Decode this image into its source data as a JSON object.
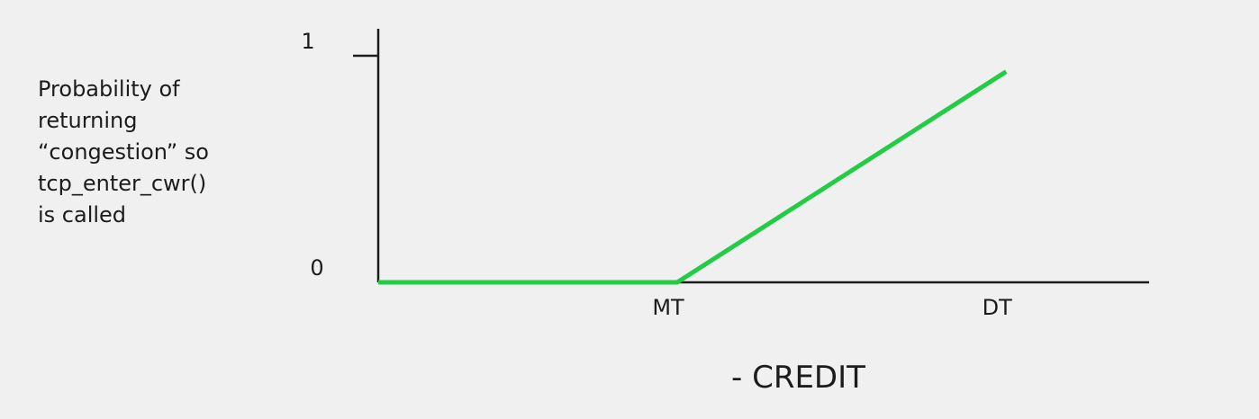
{
  "chart_data": {
    "type": "line",
    "title": "",
    "ylabel_lines": [
      "Probability of",
      "returning",
      "“congestion” so",
      "tcp_enter_cwr()",
      "is called"
    ],
    "xlabel": "- CREDIT",
    "x_ticks": [
      {
        "label": "MT",
        "value": 1.0
      },
      {
        "label": "DT",
        "value": 2.1
      }
    ],
    "y_ticks": [
      {
        "label": "0",
        "value": 0
      },
      {
        "label": "1",
        "value": 1
      }
    ],
    "xlim": [
      0,
      2.6
    ],
    "ylim": [
      0,
      1.1
    ],
    "grid": false,
    "series": [
      {
        "name": "",
        "color": "#22cc44",
        "x": [
          0,
          1.0,
          2.1
        ],
        "y": [
          0,
          0,
          0.93
        ]
      }
    ],
    "axis_color": "#1c1c1c"
  }
}
